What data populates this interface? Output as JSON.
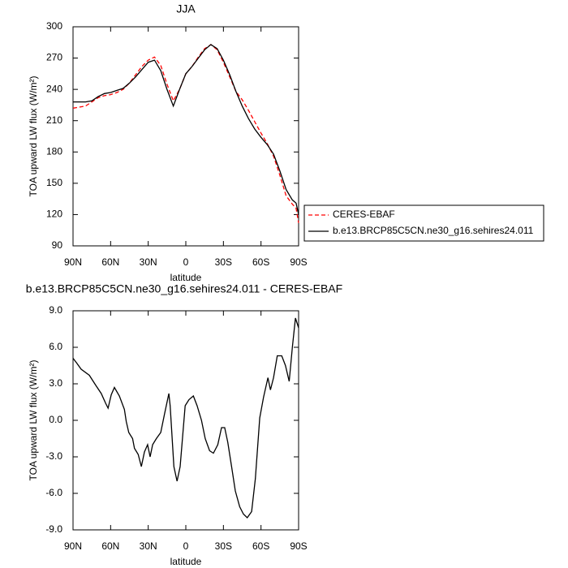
{
  "chart_data": [
    {
      "type": "line",
      "title": "JJA",
      "x_label": "latitude",
      "y_label": "TOA upward LW flux (W/m²)",
      "x": [
        90,
        85,
        80,
        75,
        70,
        65,
        60,
        55,
        50,
        45,
        40,
        35,
        30,
        25,
        20,
        15,
        10,
        5,
        0,
        -5,
        -10,
        -15,
        -20,
        -25,
        -30,
        -35,
        -40,
        -45,
        -50,
        -55,
        -60,
        -65,
        -70,
        -75,
        -80,
        -85,
        -88,
        -90
      ],
      "series": [
        {
          "name": "CERES-EBAF",
          "color": "#ff0000",
          "dash": true,
          "values": [
            222,
            223,
            224,
            228,
            232,
            234,
            235,
            237,
            240,
            246,
            254,
            262,
            268,
            271,
            263,
            245,
            229,
            240,
            255,
            262,
            271,
            279,
            283,
            278,
            266,
            252,
            238,
            230,
            220,
            209,
            198,
            188,
            176,
            158,
            138,
            130,
            126,
            112
          ]
        },
        {
          "name": "b.e13.BRCP85C5CN.ne30_g16.sehires24.011",
          "color": "#000000",
          "dash": false,
          "values": [
            228,
            228,
            228,
            229,
            233,
            236,
            237,
            239,
            241,
            246,
            252,
            259,
            266,
            268,
            258,
            240,
            224,
            240,
            255,
            262,
            270,
            278,
            283,
            279,
            268,
            254,
            238,
            224,
            212,
            202,
            194,
            187,
            178,
            162,
            144,
            134,
            131,
            120
          ]
        }
      ],
      "xlim": [
        90,
        -90
      ],
      "xticks": [
        {
          "value": 90,
          "label": "90N"
        },
        {
          "value": 60,
          "label": "60N"
        },
        {
          "value": 30,
          "label": "30N"
        },
        0,
        {
          "value": -30,
          "label": "30S"
        },
        {
          "value": -60,
          "label": "60S"
        },
        {
          "value": -90,
          "label": "90S"
        }
      ],
      "ylim": [
        90,
        300
      ],
      "yticks": [
        90,
        120,
        150,
        180,
        210,
        240,
        270,
        300
      ],
      "legend": "outside-right"
    },
    {
      "type": "line",
      "title": "b.e13.BRCP85C5CN.ne30_g16.sehires24.011 - CERES-EBAF",
      "x_label": "latitude",
      "y_label": "TOA upward LW flux (W/m²)",
      "x": [
        90,
        87,
        83.5,
        77,
        72,
        67.5,
        64,
        62,
        59.5,
        57,
        53,
        49,
        47.5,
        45.5,
        42.5,
        41,
        38,
        35.5,
        33,
        30.5,
        28.5,
        26.5,
        23.5,
        20,
        17,
        13.5,
        12.5,
        9.5,
        7,
        4.5,
        0.5,
        -2.5,
        -6,
        -9,
        -12.5,
        -15.5,
        -19,
        -22,
        -25.5,
        -28.5,
        -31,
        -33.5,
        -36.5,
        -39.5,
        -43,
        -46,
        -49,
        -52.5,
        -55.5,
        -59,
        -62,
        -65.5,
        -67.5,
        -70,
        -73,
        -76.5,
        -79.5,
        -82.5,
        -85,
        -87.5,
        -90
      ],
      "values": [
        5.1,
        4.7,
        4.2,
        3.7,
        2.9,
        2.2,
        1.4,
        1.0,
        2.1,
        2.7,
        2.0,
        0.9,
        -0.1,
        -1.0,
        -1.5,
        -2.3,
        -2.8,
        -3.8,
        -2.6,
        -2.0,
        -3.0,
        -2.0,
        -1.5,
        -1.0,
        0.5,
        2.2,
        1.2,
        -3.8,
        -5.0,
        -3.8,
        1.2,
        1.7,
        2.0,
        1.2,
        0.0,
        -1.5,
        -2.5,
        -2.7,
        -2.0,
        -0.6,
        -0.6,
        -1.8,
        -3.8,
        -5.8,
        -7.1,
        -7.7,
        -8.0,
        -7.5,
        -4.8,
        0.2,
        1.9,
        3.5,
        2.5,
        3.5,
        5.3,
        5.3,
        4.5,
        3.2,
        6.0,
        8.4,
        7.6
      ],
      "color": "#000000",
      "xlim": [
        90,
        -90
      ],
      "xticks": [
        {
          "value": 90,
          "label": "90N"
        },
        {
          "value": 60,
          "label": "60N"
        },
        {
          "value": 30,
          "label": "30N"
        },
        0,
        {
          "value": -30,
          "label": "30S"
        },
        {
          "value": -60,
          "label": "60S"
        },
        {
          "value": -90,
          "label": "90S"
        }
      ],
      "ylim": [
        -9,
        9
      ],
      "yticks": [
        {
          "value": -9,
          "label": "-9.0"
        },
        {
          "value": -6,
          "label": "-6.0"
        },
        {
          "value": -3,
          "label": "-3.0"
        },
        {
          "value": 0,
          "label": "0.0"
        },
        {
          "value": 3,
          "label": "3.0"
        },
        {
          "value": 6,
          "label": "6.0"
        },
        {
          "value": 9,
          "label": "9.0"
        }
      ]
    }
  ]
}
